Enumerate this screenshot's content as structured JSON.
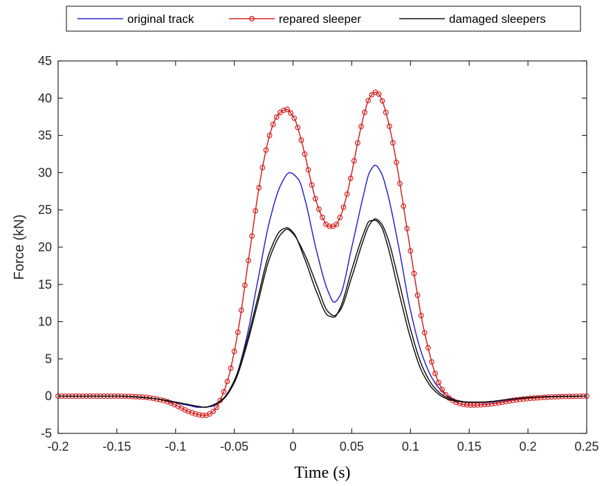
{
  "chart_data": {
    "type": "line",
    "title": "",
    "xlabel": "Time (s)",
    "ylabel": "Force (kN)",
    "xlim": [
      -0.2,
      0.25
    ],
    "ylim": [
      -5,
      45
    ],
    "x_ticks": [
      -0.2,
      -0.15,
      -0.1,
      -0.05,
      0,
      0.05,
      0.1,
      0.15,
      0.2,
      0.25
    ],
    "x_tick_labels": [
      "-0.2",
      "-0.15",
      "-0.1",
      "-0.05",
      "0",
      "0.05",
      "0.1",
      "0.15",
      "0.2",
      "0.25"
    ],
    "y_ticks": [
      -5,
      0,
      5,
      10,
      15,
      20,
      25,
      30,
      35,
      40,
      45
    ],
    "y_tick_labels": [
      "-5",
      "0",
      "5",
      "10",
      "15",
      "20",
      "25",
      "30",
      "35",
      "40",
      "45"
    ],
    "grid": false,
    "legend_position": "top-center-outside",
    "colors": {
      "original": "#2222cc",
      "repaired": "#d42020",
      "damaged": "#111111",
      "axis": "#262626"
    },
    "series": [
      {
        "name": "original track",
        "color": "#2222cc",
        "marker": "none",
        "x": [
          -0.2,
          -0.15,
          -0.12,
          -0.1,
          -0.09,
          -0.08,
          -0.07,
          -0.06,
          -0.05,
          -0.04,
          -0.03,
          -0.02,
          -0.01,
          -0.003,
          0.005,
          0.01,
          0.02,
          0.03,
          0.035,
          0.04,
          0.05,
          0.06,
          0.065,
          0.07,
          0.075,
          0.08,
          0.09,
          0.1,
          0.11,
          0.12,
          0.13,
          0.14,
          0.15,
          0.16,
          0.17,
          0.18,
          0.2,
          0.22,
          0.25
        ],
        "y": [
          0,
          0,
          -0.3,
          -0.9,
          -1.2,
          -1.5,
          -1.4,
          -0.5,
          2.0,
          7.5,
          15.5,
          23.5,
          28.5,
          30.0,
          29.0,
          26.5,
          19.5,
          14.0,
          12.6,
          13.5,
          20.0,
          27.0,
          30.0,
          31.0,
          30.0,
          27.5,
          20.0,
          11.5,
          5.5,
          2.0,
          0.2,
          -0.6,
          -0.9,
          -0.9,
          -0.8,
          -0.6,
          -0.3,
          -0.1,
          0
        ]
      },
      {
        "name": "repared sleeper",
        "color": "#d42020",
        "marker": "circle",
        "x": [
          -0.2,
          -0.15,
          -0.13,
          -0.11,
          -0.1,
          -0.09,
          -0.08,
          -0.075,
          -0.07,
          -0.065,
          -0.06,
          -0.055,
          -0.05,
          -0.045,
          -0.04,
          -0.035,
          -0.03,
          -0.025,
          -0.02,
          -0.015,
          -0.01,
          -0.005,
          -0.002,
          0.002,
          0.005,
          0.01,
          0.015,
          0.02,
          0.025,
          0.03,
          0.035,
          0.04,
          0.045,
          0.05,
          0.055,
          0.06,
          0.065,
          0.07,
          0.072,
          0.075,
          0.08,
          0.085,
          0.09,
          0.095,
          0.1,
          0.105,
          0.11,
          0.115,
          0.12,
          0.125,
          0.13,
          0.135,
          0.14,
          0.145,
          0.15,
          0.155,
          0.165,
          0.175,
          0.19,
          0.21,
          0.23,
          0.25
        ],
        "y": [
          0,
          0,
          -0.1,
          -0.6,
          -1.2,
          -2.0,
          -2.5,
          -2.6,
          -2.3,
          -1.5,
          0.2,
          2.5,
          6.0,
          10.5,
          16.0,
          21.5,
          27.0,
          31.5,
          35.0,
          37.2,
          38.2,
          38.5,
          38.0,
          37.0,
          35.5,
          32.5,
          29.0,
          26.0,
          24.0,
          22.8,
          22.8,
          24.0,
          26.5,
          30.0,
          34.0,
          37.5,
          40.0,
          40.8,
          40.7,
          40.0,
          37.5,
          34.0,
          29.5,
          24.5,
          19.5,
          14.5,
          10.0,
          6.5,
          3.5,
          1.5,
          0.2,
          -0.5,
          -0.9,
          -1.1,
          -1.2,
          -1.2,
          -1.1,
          -0.9,
          -0.5,
          -0.2,
          -0.05,
          0
        ]
      },
      {
        "name": "damaged sleepers",
        "color": "#111111",
        "marker": "none",
        "x": [
          -0.2,
          -0.15,
          -0.12,
          -0.1,
          -0.09,
          -0.08,
          -0.075,
          -0.07,
          -0.06,
          -0.05,
          -0.04,
          -0.03,
          -0.02,
          -0.01,
          -0.005,
          0.0,
          0.01,
          0.02,
          0.03,
          0.035,
          0.04,
          0.05,
          0.06,
          0.065,
          0.07,
          0.075,
          0.08,
          0.09,
          0.1,
          0.11,
          0.12,
          0.13,
          0.14,
          0.15,
          0.16,
          0.17,
          0.18,
          0.2,
          0.22,
          0.25
        ],
        "y": [
          0,
          0,
          -0.3,
          -0.8,
          -1.1,
          -1.4,
          -1.5,
          -1.3,
          -0.5,
          1.8,
          6.5,
          12.5,
          18.5,
          21.8,
          22.4,
          21.8,
          19.0,
          15.0,
          11.3,
          10.8,
          11.5,
          16.0,
          21.0,
          23.0,
          23.8,
          23.2,
          21.5,
          15.5,
          9.0,
          4.0,
          1.2,
          -0.1,
          -0.6,
          -0.8,
          -0.8,
          -0.7,
          -0.5,
          -0.2,
          -0.05,
          0
        ]
      },
      {
        "name": "damaged sleepers",
        "color": "#111111",
        "marker": "none",
        "x": [
          -0.2,
          -0.15,
          -0.12,
          -0.1,
          -0.09,
          -0.08,
          -0.075,
          -0.07,
          -0.06,
          -0.05,
          -0.04,
          -0.03,
          -0.02,
          -0.01,
          -0.005,
          0.0,
          0.01,
          0.02,
          0.03,
          0.035,
          0.04,
          0.05,
          0.06,
          0.065,
          0.07,
          0.075,
          0.08,
          0.09,
          0.1,
          0.11,
          0.12,
          0.13,
          0.14,
          0.15,
          0.16,
          0.17,
          0.18,
          0.2,
          0.22,
          0.25
        ],
        "y": [
          0,
          0,
          -0.3,
          -0.8,
          -1.1,
          -1.4,
          -1.5,
          -1.3,
          -0.4,
          2.1,
          7.0,
          13.2,
          19.3,
          22.3,
          22.6,
          22.0,
          18.4,
          14.0,
          10.8,
          10.6,
          11.8,
          17.0,
          21.8,
          23.5,
          23.6,
          22.8,
          20.5,
          14.0,
          7.8,
          3.2,
          0.8,
          -0.3,
          -0.7,
          -0.8,
          -0.8,
          -0.7,
          -0.5,
          -0.2,
          -0.05,
          0
        ]
      }
    ],
    "legend": [
      {
        "label": "original track",
        "color": "#2222cc",
        "marker": "none"
      },
      {
        "label": "repared sleeper",
        "color": "#d42020",
        "marker": "circle"
      },
      {
        "label": "damaged sleepers",
        "color": "#111111",
        "marker": "none"
      }
    ]
  }
}
